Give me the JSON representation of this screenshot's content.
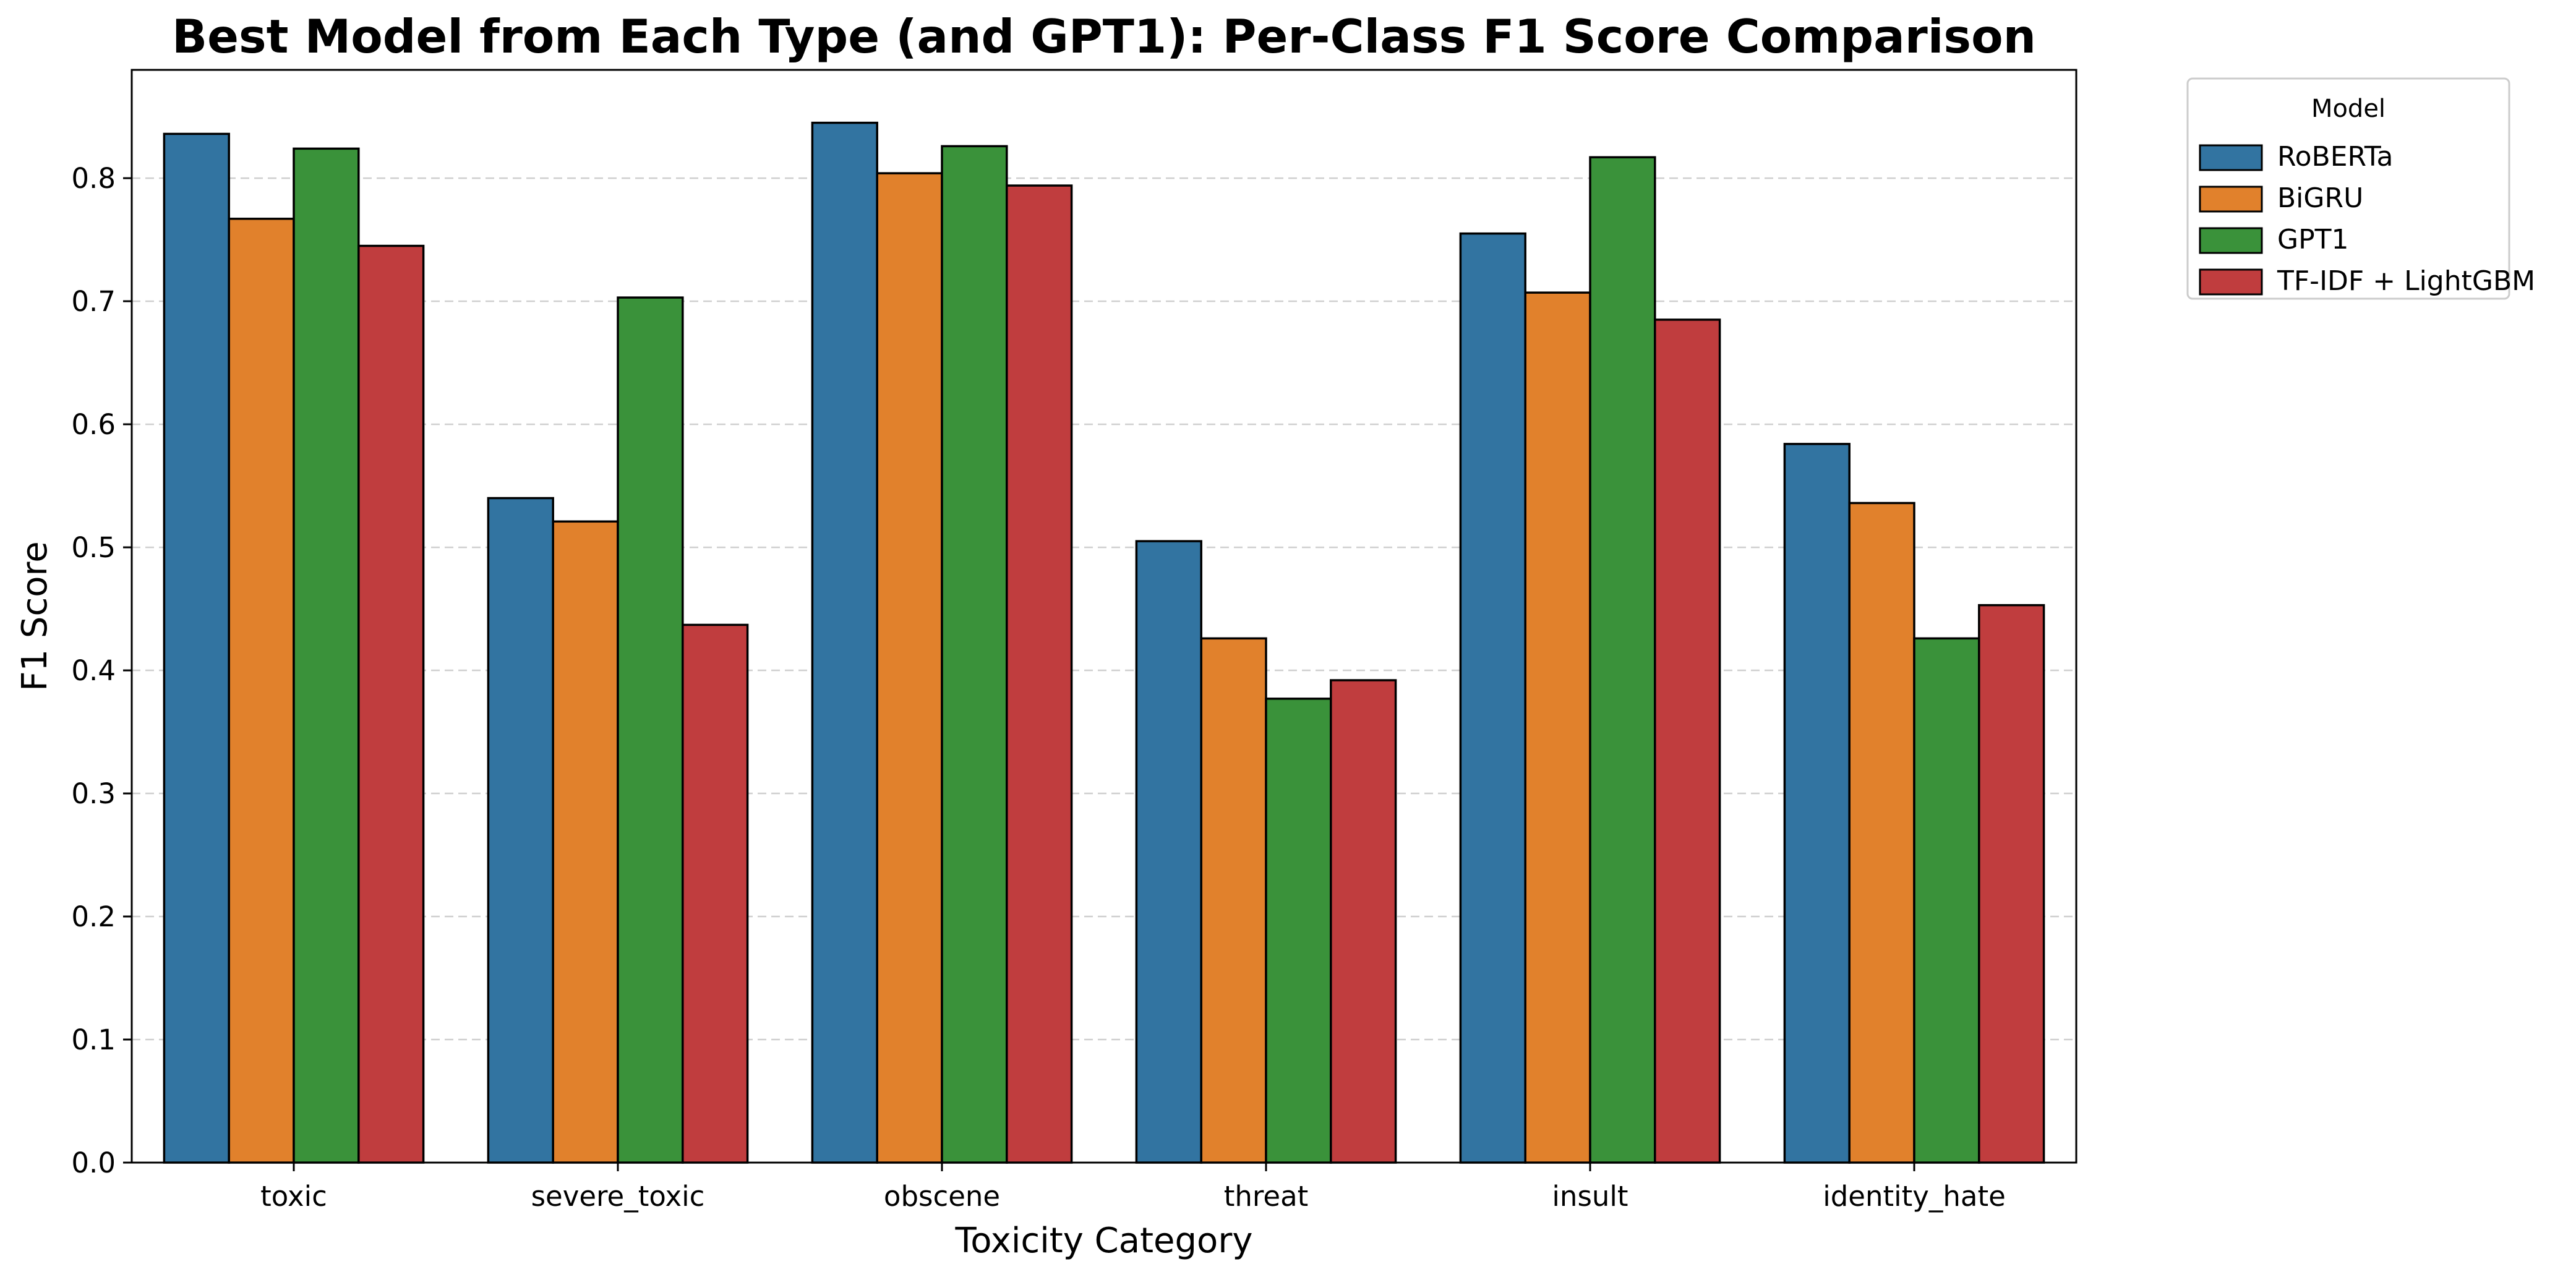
{
  "chart_data": {
    "type": "bar",
    "title": "Best Model from Each Type (and GPT1): Per-Class F1 Score Comparison",
    "xlabel": "Toxicity Category",
    "ylabel": "F1 Score",
    "ylim": [
      0,
      0.888
    ],
    "yticks": [
      "0.0",
      "0.1",
      "0.2",
      "0.3",
      "0.4",
      "0.5",
      "0.6",
      "0.7",
      "0.8"
    ],
    "grid": "y-dashed",
    "legend_title": "Model",
    "legend_position": "outside-top-right",
    "categories": [
      "toxic",
      "severe_toxic",
      "obscene",
      "threat",
      "insult",
      "identity_hate"
    ],
    "series": [
      {
        "name": "RoBERTa",
        "color": "#3274a1",
        "values": [
          0.836,
          0.54,
          0.845,
          0.505,
          0.755,
          0.584
        ]
      },
      {
        "name": "BiGRU",
        "color": "#e1812c",
        "values": [
          0.767,
          0.521,
          0.804,
          0.426,
          0.707,
          0.536
        ]
      },
      {
        "name": "GPT1",
        "color": "#3a923a",
        "values": [
          0.824,
          0.703,
          0.826,
          0.377,
          0.817,
          0.426
        ]
      },
      {
        "name": "TF-IDF + LightGBM",
        "color": "#c03d3e",
        "values": [
          0.745,
          0.437,
          0.794,
          0.392,
          0.685,
          0.453
        ]
      }
    ]
  }
}
